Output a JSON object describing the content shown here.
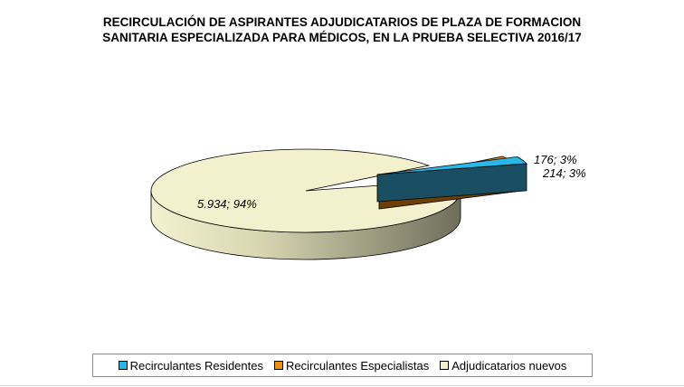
{
  "chart_data": {
    "type": "pie",
    "title": [
      "RECIRCULACIÓN DE ASPIRANTES ADJUDICATARIOS DE PLAZA DE FORMACION",
      "SANITARIA ESPECIALIZADA PARA MÉDICOS, EN LA PRUEBA SELECTIVA 2016/17"
    ],
    "three_d": true,
    "exploded": true,
    "slices": [
      {
        "name": "Recirculantes Residentes",
        "value": 176,
        "percent": 3,
        "label": "176; 3%",
        "color": "#27b7e8",
        "side_color": "#1a4e63"
      },
      {
        "name": "Recirculantes Especialistas",
        "value": 214,
        "percent": 3,
        "label": "214; 3%",
        "color": "#f28c0a",
        "side_color": "#6e3e02"
      },
      {
        "name": "Adjudicatarios nuevos",
        "value": 5934,
        "percent": 94,
        "label": "5.934; 94%",
        "color": "#f3f0cd",
        "side_color": "#9c9a80"
      }
    ],
    "legend_position": "bottom"
  }
}
